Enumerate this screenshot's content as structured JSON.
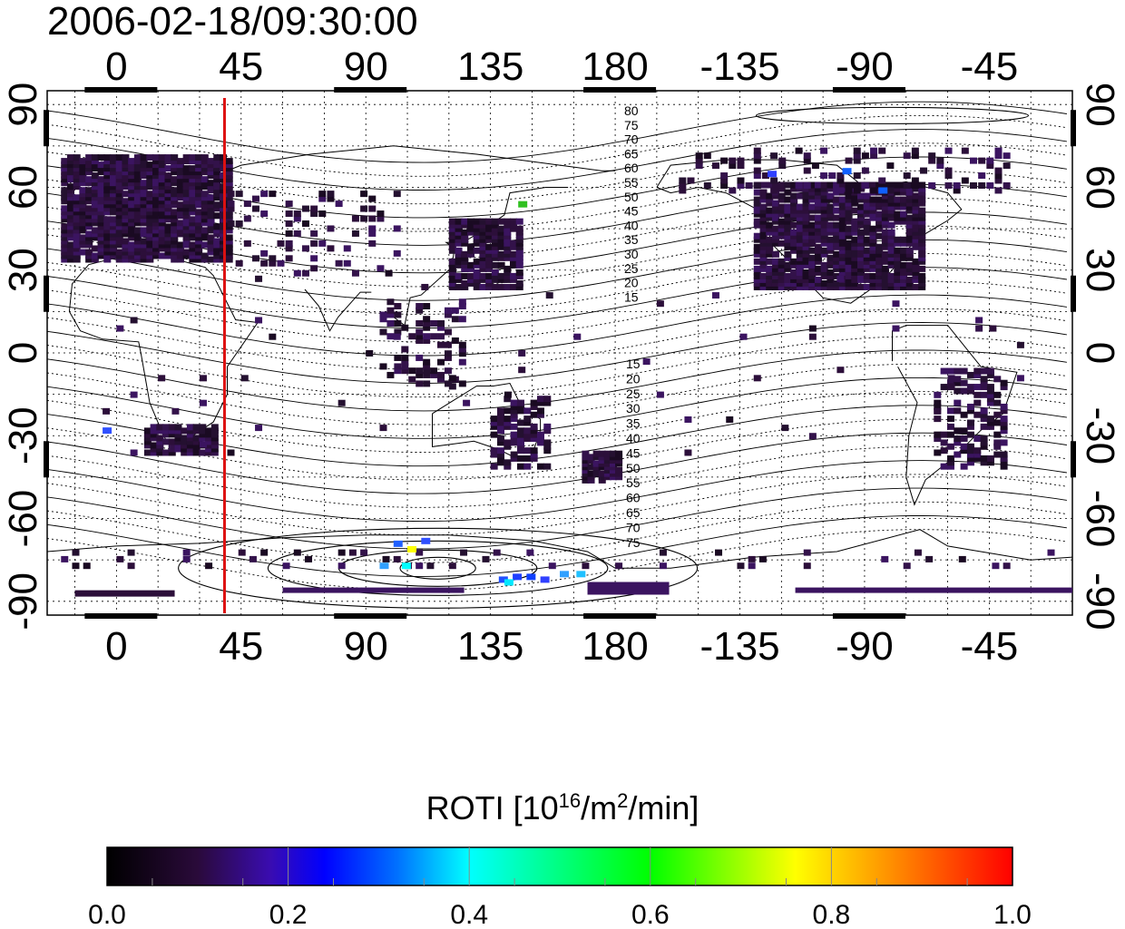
{
  "title": "2006-02-18/09:30:00",
  "map": {
    "lon_ticks": [
      {
        "lon": 0,
        "label": "0"
      },
      {
        "lon": 45,
        "label": "45"
      },
      {
        "lon": 90,
        "label": "90"
      },
      {
        "lon": 135,
        "label": "135"
      },
      {
        "lon": 180,
        "label": "180"
      },
      {
        "lon": 225,
        "label": "-135"
      },
      {
        "lon": 270,
        "label": "-90"
      },
      {
        "lon": 315,
        "label": "-45"
      }
    ],
    "lat_ticks": [
      {
        "lat": 90,
        "label": "90"
      },
      {
        "lat": 60,
        "label": "60"
      },
      {
        "lat": 30,
        "label": "30"
      },
      {
        "lat": 0,
        "label": "0"
      },
      {
        "lat": -30,
        "label": "-30"
      },
      {
        "lat": -60,
        "label": "-60"
      },
      {
        "lat": -90,
        "label": "-90"
      }
    ],
    "lon_range": [
      -25,
      345
    ],
    "lat_range": [
      -95,
      95
    ],
    "terminator_lon": 39,
    "terminator_color": "#dd1111",
    "contour_labels_north": [
      "80",
      "75",
      "70",
      "65",
      "60",
      "55",
      "50",
      "45",
      "40",
      "35",
      "30",
      "25",
      "20",
      "15"
    ],
    "contour_labels_south": [
      "15",
      "20",
      "25",
      "30",
      "35",
      "40",
      "45",
      "50",
      "55",
      "60",
      "65",
      "70",
      "75"
    ]
  },
  "colorbar": {
    "title_main": "ROTI  [10",
    "title_sup1": "16",
    "title_mid": "/m",
    "title_sup2": "2",
    "title_end": "/min]",
    "ticks": [
      "0.0",
      "0.2",
      "0.4",
      "0.6",
      "0.8",
      "1.0"
    ],
    "range": [
      0,
      1
    ]
  }
}
